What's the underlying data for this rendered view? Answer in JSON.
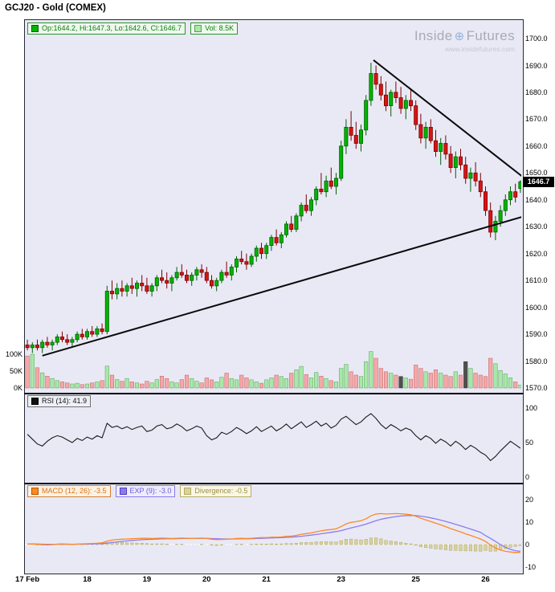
{
  "title": "GCJ20 - Gold (COMEX)",
  "watermark": {
    "part1": "Inside",
    "part2": "Futures",
    "site": "www.insidefutures.com"
  },
  "colors": {
    "panel_bg": "#e9e9f6",
    "up": "#00b400",
    "up_border": "#006000",
    "down": "#d81414",
    "down_border": "#7c0000",
    "vol_up": "#a8e8a8",
    "vol_up_border": "#55a055",
    "vol_down": "#f4a8a8",
    "vol_down_border": "#c06060",
    "vol_neutral": "#505050",
    "rsi_line": "#1a1a1a",
    "macd_line": "#ff8822",
    "exp_line": "#8a7cf0",
    "divergence": "#d8d2a0",
    "divergence_border": "#b4ab62",
    "trendline": "#0a0a0a",
    "price_tag_bg": "#000000",
    "price_tag_text": "#ffffff"
  },
  "chart_data": {
    "type": "candlestick",
    "title": "GCJ20 - Gold (COMEX)",
    "legend": {
      "ohlc_label": "Op:1644.2, Hi:1647.3, Lo:1642.6, Cl:1646.7",
      "vol_label": "Vol: 8.5K",
      "rsi_label": "RSI (14): 41.9",
      "macd_label": "MACD (12, 26): -3.5",
      "exp_label": "EXP (9): -3.0",
      "div_label": "Divergence: -0.5"
    },
    "last_price": 1646.7,
    "last_price_label": "1646.7",
    "price_axis": {
      "range": [
        1570,
        1700
      ],
      "ticks": [
        "1700.0",
        "1690.0",
        "1680.0",
        "1670.0",
        "1660.0",
        "1650.0",
        "1640.0",
        "1630.0",
        "1620.0",
        "1610.0",
        "1600.0",
        "1590.0",
        "1580.0",
        "1570.0"
      ]
    },
    "volume_axis": {
      "ticks": [
        "100K",
        "50K",
        "0K"
      ],
      "unit": "K"
    },
    "x_axis": {
      "labels": [
        {
          "text": "17 Feb",
          "i": 0
        },
        {
          "text": "18",
          "i": 12
        },
        {
          "text": "19",
          "i": 24
        },
        {
          "text": "20",
          "i": 36
        },
        {
          "text": "21",
          "i": 48
        },
        {
          "text": "23",
          "i": 63
        },
        {
          "text": "25",
          "i": 78
        },
        {
          "text": "26",
          "i": 92
        }
      ]
    },
    "candles": [
      [
        1586,
        1588,
        1584,
        1585
      ],
      [
        1585,
        1587,
        1583,
        1586
      ],
      [
        1586,
        1588,
        1584,
        1585
      ],
      [
        1585,
        1588,
        1583,
        1587
      ],
      [
        1587,
        1589,
        1585,
        1586
      ],
      [
        1586,
        1588,
        1584,
        1587
      ],
      [
        1587,
        1590,
        1586,
        1589
      ],
      [
        1589,
        1591,
        1587,
        1588
      ],
      [
        1588,
        1590,
        1586,
        1587
      ],
      [
        1587,
        1589,
        1585,
        1588
      ],
      [
        1588,
        1591,
        1587,
        1590
      ],
      [
        1590,
        1592,
        1588,
        1589
      ],
      [
        1589,
        1592,
        1588,
        1591
      ],
      [
        1591,
        1593,
        1589,
        1590
      ],
      [
        1590,
        1593,
        1589,
        1592
      ],
      [
        1592,
        1594,
        1590,
        1591
      ],
      [
        1591,
        1608,
        1590,
        1606
      ],
      [
        1606,
        1610,
        1603,
        1605
      ],
      [
        1605,
        1609,
        1603,
        1607
      ],
      [
        1607,
        1610,
        1604,
        1606
      ],
      [
        1606,
        1609,
        1604,
        1608
      ],
      [
        1608,
        1611,
        1605,
        1607
      ],
      [
        1607,
        1610,
        1604,
        1609
      ],
      [
        1609,
        1612,
        1606,
        1608
      ],
      [
        1608,
        1611,
        1605,
        1606
      ],
      [
        1606,
        1609,
        1604,
        1608
      ],
      [
        1608,
        1612,
        1606,
        1611
      ],
      [
        1611,
        1614,
        1609,
        1610
      ],
      [
        1610,
        1613,
        1607,
        1609
      ],
      [
        1609,
        1612,
        1606,
        1611
      ],
      [
        1611,
        1615,
        1610,
        1613
      ],
      [
        1613,
        1616,
        1611,
        1612
      ],
      [
        1612,
        1614,
        1609,
        1610
      ],
      [
        1610,
        1613,
        1608,
        1612
      ],
      [
        1612,
        1615,
        1610,
        1614
      ],
      [
        1614,
        1616,
        1611,
        1613
      ],
      [
        1613,
        1615,
        1609,
        1610
      ],
      [
        1610,
        1612,
        1607,
        1608
      ],
      [
        1608,
        1611,
        1606,
        1610
      ],
      [
        1610,
        1614,
        1609,
        1613
      ],
      [
        1613,
        1617,
        1611,
        1612
      ],
      [
        1612,
        1616,
        1610,
        1615
      ],
      [
        1615,
        1619,
        1613,
        1618
      ],
      [
        1618,
        1621,
        1616,
        1617
      ],
      [
        1617,
        1620,
        1614,
        1616
      ],
      [
        1616,
        1620,
        1615,
        1619
      ],
      [
        1619,
        1623,
        1617,
        1622
      ],
      [
        1622,
        1624,
        1618,
        1620
      ],
      [
        1620,
        1624,
        1618,
        1623
      ],
      [
        1623,
        1627,
        1621,
        1626
      ],
      [
        1626,
        1629,
        1623,
        1624
      ],
      [
        1624,
        1628,
        1622,
        1627
      ],
      [
        1627,
        1632,
        1626,
        1631
      ],
      [
        1631,
        1634,
        1628,
        1629
      ],
      [
        1629,
        1635,
        1628,
        1634
      ],
      [
        1634,
        1639,
        1632,
        1638
      ],
      [
        1638,
        1642,
        1635,
        1636
      ],
      [
        1636,
        1641,
        1634,
        1640
      ],
      [
        1640,
        1645,
        1638,
        1644
      ],
      [
        1644,
        1650,
        1642,
        1643
      ],
      [
        1643,
        1649,
        1641,
        1647
      ],
      [
        1647,
        1652,
        1644,
        1645
      ],
      [
        1645,
        1650,
        1642,
        1648
      ],
      [
        1648,
        1662,
        1647,
        1660
      ],
      [
        1660,
        1670,
        1657,
        1667
      ],
      [
        1667,
        1673,
        1662,
        1664
      ],
      [
        1664,
        1669,
        1659,
        1661
      ],
      [
        1661,
        1668,
        1658,
        1666
      ],
      [
        1666,
        1679,
        1664,
        1677
      ],
      [
        1677,
        1691,
        1675,
        1687
      ],
      [
        1687,
        1690,
        1681,
        1683
      ],
      [
        1683,
        1686,
        1677,
        1679
      ],
      [
        1679,
        1684,
        1673,
        1675
      ],
      [
        1675,
        1681,
        1671,
        1680
      ],
      [
        1680,
        1684,
        1676,
        1678
      ],
      [
        1678,
        1682,
        1672,
        1674
      ],
      [
        1674,
        1679,
        1670,
        1677
      ],
      [
        1677,
        1681,
        1673,
        1675
      ],
      [
        1675,
        1677,
        1666,
        1668
      ],
      [
        1668,
        1672,
        1661,
        1663
      ],
      [
        1663,
        1669,
        1659,
        1667
      ],
      [
        1667,
        1670,
        1661,
        1662
      ],
      [
        1662,
        1666,
        1656,
        1658
      ],
      [
        1658,
        1663,
        1653,
        1661
      ],
      [
        1661,
        1664,
        1655,
        1657
      ],
      [
        1657,
        1660,
        1650,
        1652
      ],
      [
        1652,
        1658,
        1648,
        1656
      ],
      [
        1656,
        1659,
        1651,
        1653
      ],
      [
        1653,
        1656,
        1646,
        1648
      ],
      [
        1648,
        1652,
        1643,
        1650
      ],
      [
        1650,
        1654,
        1645,
        1647
      ],
      [
        1647,
        1650,
        1641,
        1643
      ],
      [
        1643,
        1645,
        1634,
        1636
      ],
      [
        1636,
        1639,
        1626,
        1628
      ],
      [
        1628,
        1634,
        1625,
        1632
      ],
      [
        1632,
        1638,
        1630,
        1636
      ],
      [
        1636,
        1642,
        1634,
        1640
      ],
      [
        1640,
        1645,
        1638,
        1643
      ],
      [
        1643,
        1646,
        1639,
        1641
      ],
      [
        1644.2,
        1647.3,
        1642.6,
        1646.7
      ]
    ],
    "volumes": [
      95,
      100,
      60,
      45,
      35,
      28,
      22,
      18,
      15,
      12,
      14,
      10,
      12,
      15,
      18,
      22,
      65,
      38,
      25,
      20,
      28,
      18,
      15,
      12,
      20,
      15,
      25,
      35,
      28,
      18,
      15,
      25,
      38,
      28,
      20,
      15,
      30,
      24,
      18,
      32,
      44,
      28,
      24,
      38,
      30,
      24,
      18,
      14,
      24,
      30,
      38,
      34,
      28,
      44,
      54,
      64,
      40,
      30,
      46,
      35,
      28,
      22,
      18,
      58,
      70,
      48,
      38,
      34,
      78,
      108,
      88,
      58,
      48,
      44,
      38,
      34,
      30,
      26,
      68,
      58,
      48,
      44,
      54,
      44,
      38,
      34,
      48,
      38,
      78,
      58,
      44,
      38,
      34,
      88,
      72,
      52,
      42,
      30,
      18,
      8.5
    ],
    "volume_neutral_idx": [
      75,
      88
    ],
    "trendlines": [
      {
        "i1": 3,
        "p1": 1582,
        "i2": 100,
        "p2": 1634
      },
      {
        "i1": 69.5,
        "p1": 1692,
        "i2": 99.5,
        "p2": 1648.5
      }
    ],
    "rsi": {
      "period_label": "RSI (14)",
      "current": 41.9,
      "range": [
        0,
        100
      ],
      "ticks": [
        "100",
        "50",
        "0"
      ],
      "values": [
        62,
        55,
        48,
        45,
        52,
        57,
        60,
        58,
        54,
        50,
        56,
        53,
        58,
        55,
        60,
        57,
        78,
        72,
        74,
        70,
        73,
        69,
        72,
        74,
        66,
        68,
        74,
        76,
        70,
        72,
        77,
        73,
        67,
        70,
        74,
        71,
        60,
        54,
        57,
        65,
        62,
        66,
        72,
        68,
        63,
        67,
        73,
        66,
        70,
        74,
        67,
        71,
        77,
        70,
        75,
        80,
        72,
        76,
        81,
        74,
        78,
        71,
        75,
        84,
        88,
        82,
        76,
        80,
        87,
        92,
        85,
        76,
        70,
        76,
        72,
        67,
        71,
        68,
        60,
        54,
        60,
        56,
        49,
        55,
        51,
        45,
        52,
        47,
        40,
        46,
        42,
        36,
        32,
        24,
        30,
        38,
        45,
        52,
        47,
        41.9
      ]
    },
    "macd": {
      "current_macd": -3.5,
      "current_exp": -3.0,
      "current_divergence": -0.5,
      "range": [
        -10,
        20
      ],
      "ticks": [
        "20",
        "10",
        "0",
        "-10"
      ],
      "divergence_rule": "macd - exp",
      "macd": [
        0.3,
        0.2,
        0.1,
        0.0,
        -0.1,
        0.0,
        0.2,
        0.3,
        0.2,
        0.1,
        0.2,
        0.3,
        0.4,
        0.5,
        0.6,
        0.8,
        1.5,
        2.0,
        2.3,
        2.4,
        2.5,
        2.6,
        2.7,
        2.8,
        2.8,
        2.7,
        2.8,
        2.9,
        2.8,
        2.7,
        2.8,
        2.9,
        2.8,
        2.7,
        2.8,
        2.9,
        2.7,
        2.4,
        2.2,
        2.3,
        2.4,
        2.5,
        2.7,
        2.8,
        2.7,
        2.8,
        3.0,
        3.1,
        3.1,
        3.3,
        3.3,
        3.4,
        3.7,
        3.8,
        4.1,
        4.6,
        4.9,
        5.2,
        5.7,
        6.1,
        6.5,
        6.7,
        7.0,
        8.0,
        9.2,
        9.9,
        10.2,
        10.6,
        11.5,
        12.8,
        13.6,
        13.8,
        13.6,
        13.7,
        13.8,
        13.7,
        13.5,
        13.3,
        12.6,
        11.7,
        11.0,
        10.3,
        9.5,
        8.8,
        8.0,
        7.1,
        6.4,
        5.6,
        4.8,
        4.1,
        3.3,
        2.5,
        1.4,
        -0.2,
        -1.5,
        -2.4,
        -3.0,
        -3.3,
        -3.5,
        -3.5
      ],
      "exp": [
        0.3,
        0.28,
        0.24,
        0.19,
        0.14,
        0.11,
        0.13,
        0.16,
        0.17,
        0.16,
        0.17,
        0.19,
        0.23,
        0.29,
        0.35,
        0.44,
        0.65,
        0.92,
        1.2,
        1.44,
        1.65,
        1.84,
        2.01,
        2.17,
        2.3,
        2.38,
        2.46,
        2.55,
        2.6,
        2.62,
        2.66,
        2.71,
        2.73,
        2.72,
        2.74,
        2.77,
        2.76,
        2.69,
        2.59,
        2.53,
        2.5,
        2.5,
        2.54,
        2.59,
        2.61,
        2.65,
        2.72,
        2.8,
        2.86,
        2.95,
        3.02,
        3.09,
        3.21,
        3.33,
        3.49,
        3.71,
        3.95,
        4.2,
        4.5,
        4.82,
        5.15,
        5.46,
        5.77,
        6.22,
        6.81,
        7.43,
        7.98,
        8.51,
        9.11,
        9.84,
        10.6,
        11.24,
        11.71,
        12.11,
        12.45,
        12.7,
        12.86,
        12.95,
        12.88,
        12.64,
        12.31,
        11.91,
        11.43,
        10.9,
        10.32,
        9.68,
        9.02,
        8.34,
        7.63,
        6.92,
        6.2,
        5.46,
        4.0,
        2.8,
        1.4,
        0.0,
        -1.2,
        -2.1,
        -2.7,
        -3.0
      ]
    }
  }
}
